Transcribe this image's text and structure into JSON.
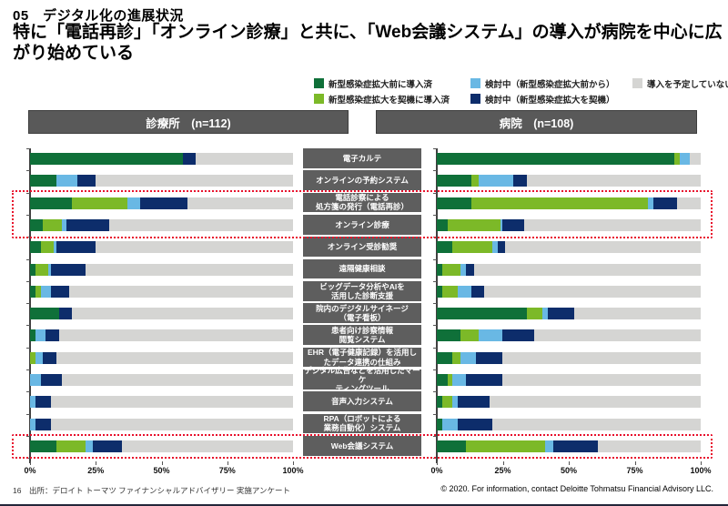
{
  "page": {
    "kicker": "05　デジタル化の進展状況",
    "headline": "特に「電話再診」「オンライン診療」と共に、「Web会議システム」の導入が病院を中心に広がり始めている",
    "footer_left": "16　出所：デロイト トーマツ ファイナンシャルアドバイザリー 実施アンケート",
    "footer_right": "© 2020. For information, contact Deloitte Tohmatsu Financial Advisory LLC."
  },
  "colors": {
    "pre_installed": "#0f7039",
    "installed_during": "#7cb928",
    "considering_before": "#69b8e4",
    "considering_during": "#0d2d6b",
    "not_planned": "#d5d5d3",
    "header_gray": "#595959",
    "label_gray": "#5e5e5e",
    "highlight_red": "#e8112d"
  },
  "legend": [
    {
      "key": "pre_installed",
      "label": "新型感染症拡大前に導入済"
    },
    {
      "key": "installed_during",
      "label": "新型感染症拡大を契機に導入済"
    },
    {
      "key": "considering_before",
      "label": "検討中（新型感染症拡大前から）"
    },
    {
      "key": "considering_during",
      "label": "検討中（新型感染症拡大を契機）"
    },
    {
      "key": "not_planned",
      "label": "導入を予定していない"
    }
  ],
  "chart_data": {
    "type": "bar",
    "stacked": true,
    "orientation": "horizontal",
    "unit": "%",
    "xlim": [
      0,
      100
    ],
    "x_ticks": [
      "0%",
      "25%",
      "50%",
      "75%",
      "100%"
    ],
    "series_labels": [
      "新型感染症拡大前に導入済",
      "新型感染症拡大を契機に導入済",
      "検討中（新型感染症拡大前から）",
      "検討中（新型感染症拡大を契機）",
      "導入を予定していない"
    ],
    "categories": [
      "電子カルテ",
      "オンラインの予約システム",
      "電話診察による\n処方箋の発行（電話再診）",
      "オンライン診療",
      "オンライン受診勧奨",
      "遠隔健康相談",
      "ビッグデータ分析やAIを\n活用した診断支援",
      "院内のデジタルサイネージ\n（電子看板）",
      "患者向け診察情報\n閲覧システム",
      "EHR（電子健康記録）を活用し\nたデータ連携の仕組み",
      "デジタル広告などを活用したマーケ\nティングツール",
      "音声入力システム",
      "RPA（ロボットによる\n業務自動化）システム",
      "Web会議システム"
    ],
    "highlighted_categories": [
      "電話診察による処方箋の発行（電話再診）",
      "オンライン診療",
      "Web会議システム"
    ],
    "panels": [
      {
        "title": "診療所　(n=112)",
        "rows": [
          [
            58,
            0,
            0,
            5,
            37
          ],
          [
            10,
            0,
            8,
            7,
            75
          ],
          [
            16,
            21,
            5,
            18,
            40
          ],
          [
            5,
            7,
            2,
            16,
            70
          ],
          [
            4,
            5,
            1,
            15,
            75
          ],
          [
            2,
            5,
            1,
            13,
            79
          ],
          [
            2,
            2,
            4,
            7,
            85
          ],
          [
            11,
            0,
            0,
            5,
            84
          ],
          [
            2,
            0,
            4,
            5,
            89
          ],
          [
            0,
            2,
            3,
            5,
            90
          ],
          [
            0,
            0,
            4,
            8,
            88
          ],
          [
            0,
            0,
            2,
            6,
            92
          ],
          [
            0,
            0,
            2,
            6,
            92
          ],
          [
            10,
            11,
            3,
            11,
            65
          ]
        ]
      },
      {
        "title": "病院　(n=108)",
        "rows": [
          [
            90,
            2,
            4,
            0,
            4
          ],
          [
            13,
            3,
            13,
            5,
            66
          ],
          [
            13,
            67,
            2,
            9,
            9
          ],
          [
            4,
            20,
            1,
            8,
            67
          ],
          [
            6,
            15,
            2,
            3,
            74
          ],
          [
            2,
            7,
            2,
            3,
            86
          ],
          [
            2,
            6,
            5,
            5,
            82
          ],
          [
            34,
            6,
            2,
            10,
            48
          ],
          [
            9,
            7,
            9,
            12,
            63
          ],
          [
            6,
            3,
            6,
            10,
            75
          ],
          [
            4,
            2,
            5,
            14,
            75
          ],
          [
            2,
            4,
            2,
            12,
            80
          ],
          [
            2,
            0,
            6,
            13,
            79
          ],
          [
            11,
            30,
            3,
            17,
            39
          ]
        ]
      }
    ]
  }
}
